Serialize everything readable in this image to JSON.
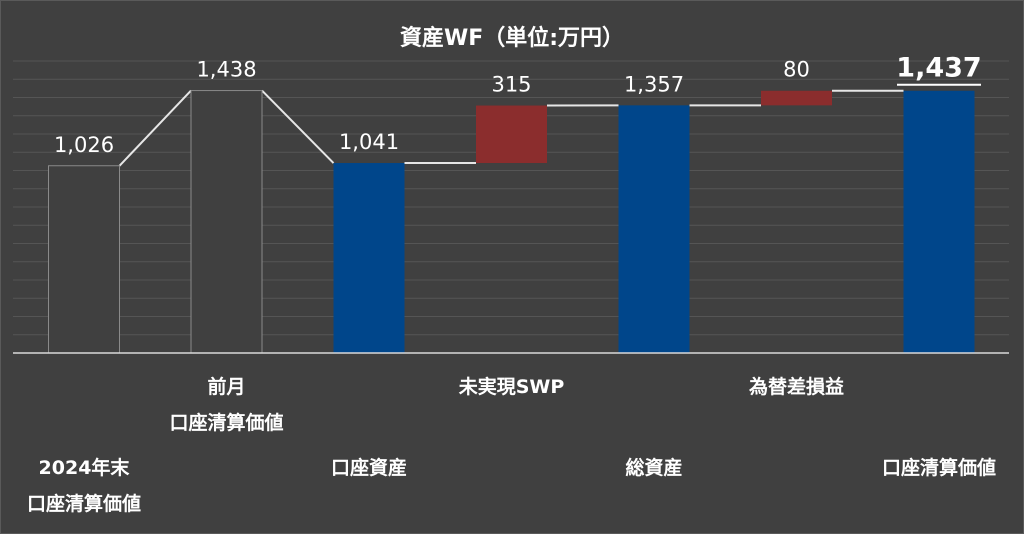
{
  "chart_data": {
    "type": "bar",
    "title": "資産WF（単位:万円）",
    "categories": [
      [
        "2024年末",
        "口座清算価値"
      ],
      [
        "前月",
        "口座清算価値"
      ],
      [
        "口座資産"
      ],
      [
        "未実現SWP"
      ],
      [
        "総資産"
      ],
      [
        "為替差損益"
      ],
      [
        "口座清算価値"
      ]
    ],
    "bars": [
      {
        "start": 0,
        "end": 1026,
        "label": "1,026",
        "kind": "prior"
      },
      {
        "start": 0,
        "end": 1438,
        "label": "1,438",
        "kind": "prior"
      },
      {
        "start": 0,
        "end": 1041,
        "label": "1,041",
        "kind": "total"
      },
      {
        "start": 1041,
        "end": 1356,
        "label": "315",
        "kind": "delta"
      },
      {
        "start": 0,
        "end": 1357,
        "label": "1,357",
        "kind": "total"
      },
      {
        "start": 1357,
        "end": 1437,
        "label": "80",
        "kind": "delta"
      },
      {
        "start": 0,
        "end": 1437,
        "label": "1,437",
        "kind": "total",
        "emphasis": true
      }
    ],
    "ylim": [
      0,
      1600
    ],
    "grid": true,
    "legend": "none",
    "colors": {
      "prior": "#404040",
      "total": "#00468b",
      "delta": "#8b2d2d",
      "connector": "#e6e6e6",
      "grid": "#555555",
      "text": "#ffffff"
    }
  }
}
